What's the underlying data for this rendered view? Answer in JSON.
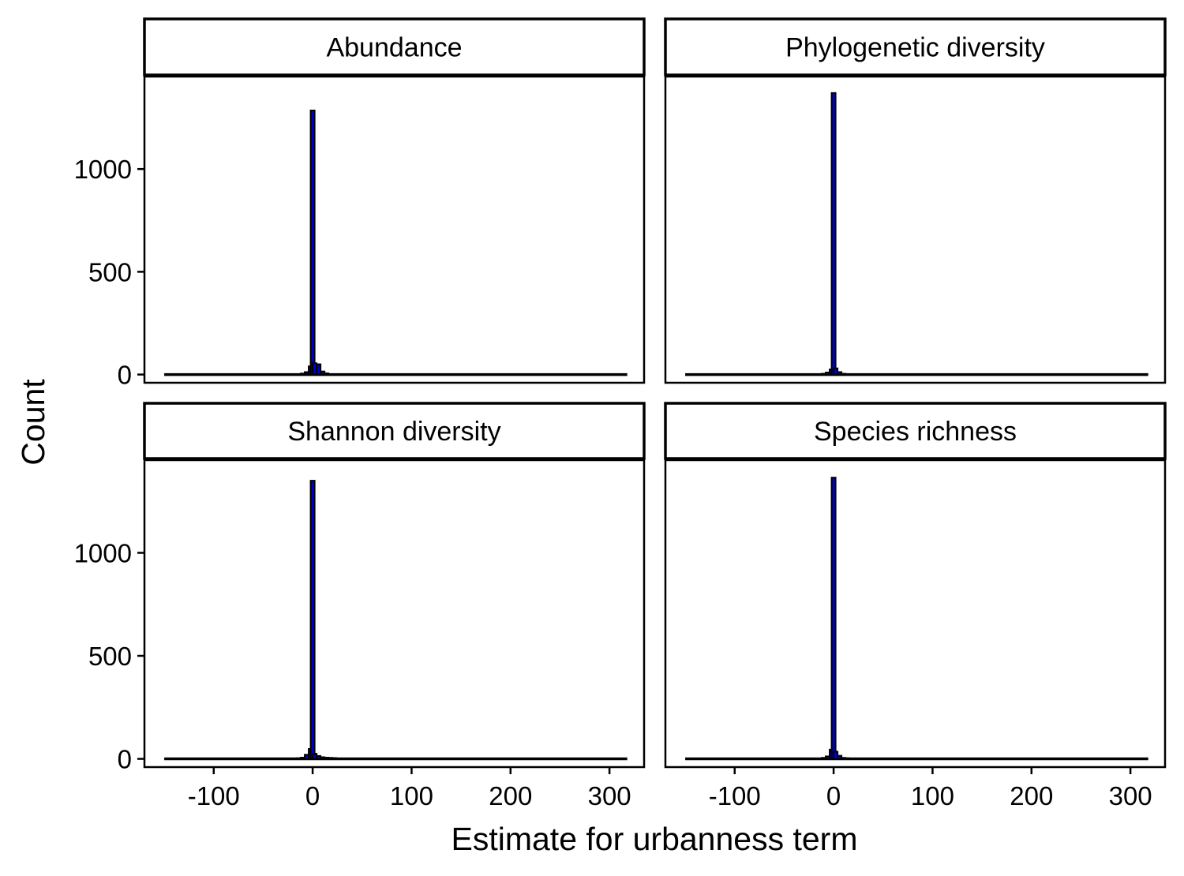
{
  "chart_data": {
    "type": "bar",
    "subtype": "faceted-histogram",
    "xlabel": "Estimate for urbanness term",
    "ylabel": "Count",
    "xlim": [
      -170,
      335
    ],
    "ylim": [
      -40,
      1450
    ],
    "x_ticks": [
      -100,
      0,
      100,
      200,
      300
    ],
    "x_tick_labels": [
      "-100",
      "0",
      "100",
      "200",
      "300"
    ],
    "y_ticks": [
      0,
      500,
      1000
    ],
    "y_tick_labels": [
      "0",
      "500",
      "1000"
    ],
    "bin_width": 4,
    "bar_fill": "#0000cc",
    "bar_outline": "#000000",
    "x_range": [
      -150,
      318
    ],
    "layout": "2x2",
    "panels": [
      {
        "name": "Abundance",
        "bins": [
          {
            "x": -10,
            "y": 5
          },
          {
            "x": -6,
            "y": 12
          },
          {
            "x": -2,
            "y": 40
          },
          {
            "x": 0,
            "y": 1285
          },
          {
            "x": 2,
            "y": 55
          },
          {
            "x": 6,
            "y": 50
          },
          {
            "x": 10,
            "y": 15
          },
          {
            "x": 14,
            "y": 6
          },
          {
            "x": 18,
            "y": 2
          }
        ]
      },
      {
        "name": "Phylogenetic diversity",
        "bins": [
          {
            "x": -10,
            "y": 4
          },
          {
            "x": -6,
            "y": 10
          },
          {
            "x": -2,
            "y": 25
          },
          {
            "x": 0,
            "y": 1370
          },
          {
            "x": 2,
            "y": 30
          },
          {
            "x": 6,
            "y": 12
          },
          {
            "x": 10,
            "y": 4
          }
        ]
      },
      {
        "name": "Shannon diversity",
        "bins": [
          {
            "x": -14,
            "y": 3
          },
          {
            "x": -10,
            "y": 6
          },
          {
            "x": -6,
            "y": 20
          },
          {
            "x": -2,
            "y": 48
          },
          {
            "x": 0,
            "y": 1350
          },
          {
            "x": 2,
            "y": 25
          },
          {
            "x": 6,
            "y": 14
          },
          {
            "x": 10,
            "y": 8
          },
          {
            "x": 14,
            "y": 6
          },
          {
            "x": 18,
            "y": 5
          },
          {
            "x": 22,
            "y": 4
          },
          {
            "x": 26,
            "y": 2
          }
        ]
      },
      {
        "name": "Species richness",
        "bins": [
          {
            "x": -10,
            "y": 5
          },
          {
            "x": -6,
            "y": 12
          },
          {
            "x": -2,
            "y": 45
          },
          {
            "x": 0,
            "y": 1365
          },
          {
            "x": 2,
            "y": 35
          },
          {
            "x": 6,
            "y": 15
          },
          {
            "x": 10,
            "y": 5
          },
          {
            "x": 14,
            "y": 3
          },
          {
            "x": 30,
            "y": 2
          }
        ]
      }
    ]
  }
}
